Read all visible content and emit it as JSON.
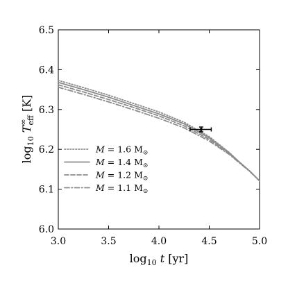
{
  "chart_data": {
    "type": "line",
    "title": "",
    "xlabel": "log₁₀ t [yr]",
    "ylabel": "log₁₀ T∞ₑₒₒ [K]",
    "xlabel_parts": {
      "func": "log",
      "sub": "10",
      "var": "t",
      "unit": "[yr]"
    },
    "ylabel_parts": {
      "func": "log",
      "sub": "10",
      "var": "T",
      "sup": "∞",
      "varsub": "eff",
      "unit": "[K]"
    },
    "xlim": [
      3.0,
      5.0
    ],
    "ylim": [
      6.0,
      6.5
    ],
    "x_ticks": [
      "3.0",
      "3.5",
      "4.0",
      "4.5",
      "5.0"
    ],
    "y_ticks": [
      "6.0",
      "6.1",
      "6.2",
      "6.3",
      "6.4",
      "6.5"
    ],
    "legend_position": "lower-left",
    "grid": false,
    "color": "#8c8c8c",
    "series": [
      {
        "name": "M = 1.6 M⊙",
        "name_parts": {
          "var": "M",
          "value": "1.6",
          "unit": "M",
          "unit_sub": "⊙"
        },
        "dash": "dotted",
        "x": [
          3.0,
          3.25,
          3.5,
          3.75,
          4.0,
          4.25,
          4.5,
          4.6,
          4.7,
          4.8,
          4.9,
          5.0
        ],
        "y": [
          6.373,
          6.355,
          6.336,
          6.315,
          6.294,
          6.268,
          6.232,
          6.212,
          6.192,
          6.168,
          6.146,
          6.121
        ]
      },
      {
        "name": "M = 1.4 M⊙",
        "name_parts": {
          "var": "M",
          "value": "1.4",
          "unit": "M",
          "unit_sub": "⊙"
        },
        "dash": "solid",
        "x": [
          3.0,
          3.25,
          3.5,
          3.75,
          4.0,
          4.25,
          4.5,
          4.6,
          4.7,
          4.8,
          4.9,
          5.0
        ],
        "y": [
          6.368,
          6.35,
          6.331,
          6.31,
          6.289,
          6.264,
          6.229,
          6.21,
          6.191,
          6.168,
          6.146,
          6.121
        ]
      },
      {
        "name": "M = 1.2 M⊙",
        "name_parts": {
          "var": "M",
          "value": "1.2",
          "unit": "M",
          "unit_sub": "⊙"
        },
        "dash": "dashed",
        "x": [
          3.0,
          3.25,
          3.5,
          3.75,
          4.0,
          4.25,
          4.5,
          4.6,
          4.7,
          4.8,
          4.9,
          5.0
        ],
        "y": [
          6.362,
          6.344,
          6.325,
          6.305,
          6.284,
          6.259,
          6.225,
          6.207,
          6.189,
          6.167,
          6.146,
          6.121
        ]
      },
      {
        "name": "M = 1.1 M⊙",
        "name_parts": {
          "var": "M",
          "value": "1.1",
          "unit": "M",
          "unit_sub": "⊙"
        },
        "dash": "dashdot",
        "x": [
          3.0,
          3.25,
          3.5,
          3.75,
          4.0,
          4.25,
          4.5,
          4.6,
          4.7,
          4.8,
          4.9,
          5.0
        ],
        "y": [
          6.356,
          6.338,
          6.319,
          6.299,
          6.278,
          6.254,
          6.221,
          6.204,
          6.187,
          6.166,
          6.145,
          6.121
        ]
      }
    ],
    "observation": {
      "x": 4.42,
      "y": 6.25,
      "x_err": [
        4.31,
        4.52
      ],
      "y_err": [
        6.244,
        6.256
      ],
      "color": "#000000"
    }
  }
}
